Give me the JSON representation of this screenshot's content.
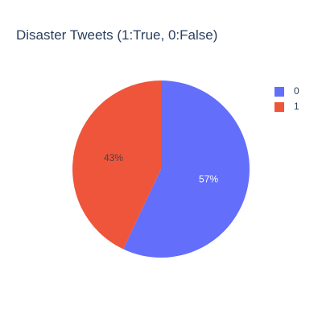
{
  "chart_data": {
    "type": "pie",
    "title": "Disaster Tweets (1:True, 0:False)",
    "labels": [
      "0",
      "1"
    ],
    "values": [
      57,
      43
    ],
    "text_labels": [
      "57%",
      "43%"
    ],
    "colors": [
      "#636efa",
      "#ef553b"
    ],
    "legend_position": "top-right",
    "direction": "clockwise",
    "start_angle_deg": 0
  }
}
